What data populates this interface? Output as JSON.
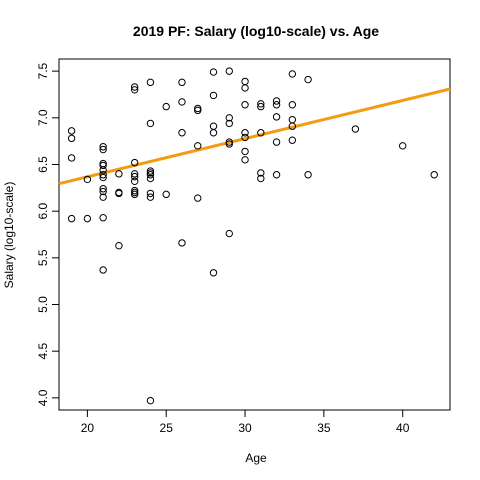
{
  "chart_data": {
    "type": "scatter",
    "title": "2019 PF: Salary (log10-scale) vs. Age",
    "xlabel": "Age",
    "ylabel": "Salary (log10-scale)",
    "xlim": [
      18.2,
      43.0
    ],
    "ylim": [
      3.87,
      7.63
    ],
    "xticks": [
      20,
      25,
      30,
      35,
      40
    ],
    "yticks": [
      4.0,
      4.5,
      5.0,
      5.5,
      6.0,
      6.5,
      7.0,
      7.5
    ],
    "ytick_labels": [
      "4.0",
      "4.5",
      "5.0",
      "5.5",
      "6.0",
      "6.5",
      "7.0",
      "7.5"
    ],
    "grid": false,
    "marker": "open-circle",
    "point_color": "#000000",
    "fit_line": {
      "slope": 0.0409,
      "intercept": 5.55,
      "color": "#f39c12",
      "x_range": [
        18.2,
        43.0
      ]
    },
    "points": [
      [
        19,
        6.86
      ],
      [
        19,
        6.78
      ],
      [
        19,
        6.57
      ],
      [
        19,
        5.92
      ],
      [
        20,
        6.34
      ],
      [
        20,
        5.92
      ],
      [
        21,
        6.69
      ],
      [
        21,
        6.66
      ],
      [
        21,
        6.51
      ],
      [
        21,
        6.49
      ],
      [
        21,
        6.44
      ],
      [
        21,
        6.39
      ],
      [
        21,
        6.36
      ],
      [
        21,
        6.24
      ],
      [
        21,
        6.21
      ],
      [
        21,
        6.15
      ],
      [
        21,
        5.93
      ],
      [
        21,
        5.37
      ],
      [
        22,
        6.4
      ],
      [
        22,
        6.2
      ],
      [
        22,
        6.19
      ],
      [
        22,
        5.63
      ],
      [
        23,
        7.33
      ],
      [
        23,
        7.3
      ],
      [
        23,
        6.52
      ],
      [
        23,
        6.4
      ],
      [
        23,
        6.37
      ],
      [
        23,
        6.32
      ],
      [
        23,
        6.22
      ],
      [
        23,
        6.2
      ],
      [
        23,
        6.18
      ],
      [
        24,
        7.38
      ],
      [
        24,
        6.94
      ],
      [
        24,
        6.43
      ],
      [
        24,
        6.41
      ],
      [
        24,
        6.39
      ],
      [
        24,
        6.35
      ],
      [
        24,
        6.19
      ],
      [
        24,
        6.15
      ],
      [
        24,
        3.97
      ],
      [
        25,
        7.12
      ],
      [
        25,
        6.18
      ],
      [
        26,
        7.38
      ],
      [
        26,
        7.17
      ],
      [
        26,
        6.84
      ],
      [
        26,
        5.66
      ],
      [
        27,
        7.1
      ],
      [
        27,
        7.08
      ],
      [
        27,
        6.7
      ],
      [
        27,
        6.14
      ],
      [
        28,
        7.49
      ],
      [
        28,
        7.24
      ],
      [
        28,
        6.91
      ],
      [
        28,
        6.84
      ],
      [
        28,
        5.34
      ],
      [
        29,
        7.5
      ],
      [
        29,
        7.0
      ],
      [
        29,
        6.94
      ],
      [
        29,
        6.74
      ],
      [
        29,
        6.72
      ],
      [
        29,
        5.76
      ],
      [
        30,
        7.39
      ],
      [
        30,
        7.32
      ],
      [
        30,
        7.14
      ],
      [
        30,
        6.84
      ],
      [
        30,
        6.79
      ],
      [
        30,
        6.64
      ],
      [
        30,
        6.55
      ],
      [
        31,
        7.15
      ],
      [
        31,
        7.12
      ],
      [
        31,
        6.84
      ],
      [
        31,
        6.41
      ],
      [
        31,
        6.35
      ],
      [
        32,
        7.18
      ],
      [
        32,
        7.14
      ],
      [
        32,
        7.01
      ],
      [
        32,
        6.74
      ],
      [
        32,
        6.39
      ],
      [
        33,
        7.47
      ],
      [
        33,
        7.14
      ],
      [
        33,
        6.98
      ],
      [
        33,
        6.91
      ],
      [
        33,
        6.76
      ],
      [
        34,
        7.41
      ],
      [
        34,
        6.39
      ],
      [
        37,
        6.88
      ],
      [
        40,
        6.7
      ],
      [
        42,
        6.39
      ]
    ]
  }
}
